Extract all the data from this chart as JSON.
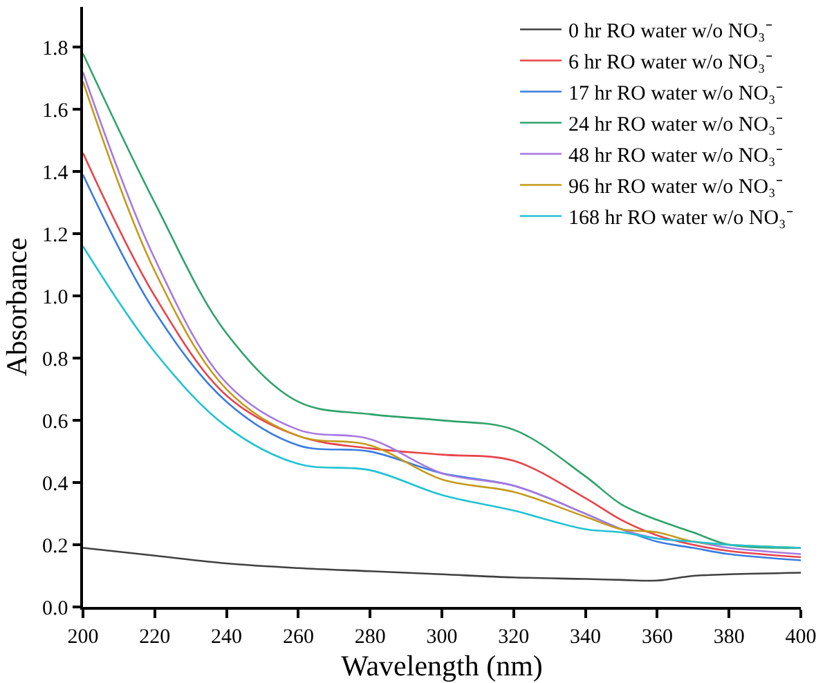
{
  "chart_data": {
    "type": "line",
    "xlabel": "Wavelength (nm)",
    "ylabel": "Absorbance",
    "x": [
      200,
      220,
      240,
      260,
      280,
      300,
      320,
      340,
      350,
      360,
      370,
      380,
      400
    ],
    "series": [
      {
        "name": "0 hr RO water w/o NO₃⁻",
        "color": "#404040",
        "values": [
          0.19,
          0.165,
          0.14,
          0.125,
          0.115,
          0.105,
          0.095,
          0.09,
          0.087,
          0.085,
          0.1,
          0.105,
          0.11
        ]
      },
      {
        "name": "6 hr RO water w/o NO₃⁻",
        "color": "#e8434a",
        "values": [
          1.46,
          1.0,
          0.68,
          0.55,
          0.51,
          0.49,
          0.47,
          0.35,
          0.28,
          0.23,
          0.2,
          0.18,
          0.16
        ]
      },
      {
        "name": "17 hr RO water w/o NO₃⁻",
        "color": "#3a7de0",
        "values": [
          1.39,
          0.95,
          0.66,
          0.52,
          0.5,
          0.43,
          0.39,
          0.3,
          0.25,
          0.21,
          0.19,
          0.17,
          0.15
        ]
      },
      {
        "name": "24 hr RO water w/o NO₃⁻",
        "color": "#2ea36a",
        "values": [
          1.78,
          1.3,
          0.88,
          0.66,
          0.62,
          0.6,
          0.57,
          0.42,
          0.33,
          0.28,
          0.24,
          0.2,
          0.19
        ]
      },
      {
        "name": "48 hr RO water w/o NO₃⁻",
        "color": "#a779e0",
        "values": [
          1.72,
          1.12,
          0.72,
          0.57,
          0.54,
          0.43,
          0.39,
          0.3,
          0.25,
          0.22,
          0.21,
          0.19,
          0.17
        ]
      },
      {
        "name": "96 hr RO water w/o NO₃⁻",
        "color": "#c49a1a",
        "values": [
          1.69,
          1.08,
          0.7,
          0.55,
          0.52,
          0.41,
          0.37,
          0.29,
          0.25,
          0.24,
          0.21,
          0.2,
          0.19
        ]
      },
      {
        "name": "168 hr RO water w/o NO₃⁻",
        "color": "#1fc3d3",
        "values": [
          1.16,
          0.82,
          0.58,
          0.46,
          0.44,
          0.36,
          0.31,
          0.25,
          0.24,
          0.22,
          0.21,
          0.2,
          0.19
        ]
      }
    ],
    "xlim": [
      200,
      400
    ],
    "xticks": [
      200,
      220,
      240,
      260,
      280,
      300,
      320,
      340,
      360,
      380,
      400
    ],
    "ylim": [
      0,
      1.93
    ],
    "yticks": [
      {
        "value": 0,
        "label": "0.0"
      },
      0.2,
      0.4,
      0.6,
      0.8,
      {
        "value": 1,
        "label": "1.0"
      },
      1.2,
      1.4,
      1.6,
      1.8
    ],
    "legend": "top right",
    "marker": "none",
    "line_style": "solid"
  }
}
